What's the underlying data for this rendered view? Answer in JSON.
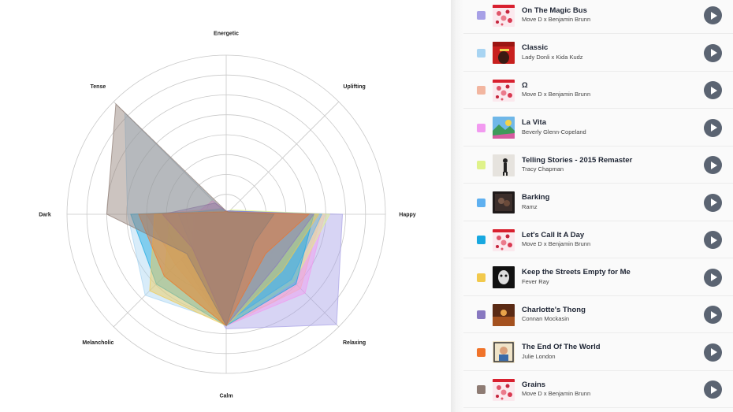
{
  "chart_data": {
    "type": "radar",
    "axes": [
      "Energetic",
      "Uplifting",
      "Happy",
      "Relaxing",
      "Calm",
      "Melancholic",
      "Dark",
      "Tense"
    ],
    "rmax": 1.0,
    "rings": 8,
    "series": [
      {
        "color": "#a7a0e6",
        "values": [
          0.02,
          0.03,
          0.73,
          0.98,
          0.72,
          0.4,
          0.02,
          0.02
        ]
      },
      {
        "color": "#a8d4f2",
        "values": [
          0.01,
          0.02,
          0.6,
          0.62,
          0.68,
          0.72,
          0.62,
          0.9
        ]
      },
      {
        "color": "#f2b6a0",
        "values": [
          0.01,
          0.02,
          0.6,
          0.66,
          0.7,
          0.45,
          0.5,
          0.05
        ]
      },
      {
        "color": "#f29af0",
        "values": [
          0.02,
          0.03,
          0.62,
          0.7,
          0.7,
          0.3,
          0.2,
          0.12
        ]
      },
      {
        "color": "#dff28a",
        "values": [
          0.01,
          0.04,
          0.65,
          0.6,
          0.7,
          0.55,
          0.35,
          0.05
        ]
      },
      {
        "color": "#5fb0f0",
        "values": [
          0.02,
          0.03,
          0.6,
          0.58,
          0.68,
          0.3,
          0.3,
          0.05
        ]
      },
      {
        "color": "#18a8e0",
        "values": [
          0.01,
          0.02,
          0.55,
          0.62,
          0.7,
          0.62,
          0.6,
          0.03
        ]
      },
      {
        "color": "#f2c94c",
        "values": [
          0.01,
          0.02,
          0.58,
          0.5,
          0.7,
          0.68,
          0.45,
          0.03
        ]
      },
      {
        "color": "#8878c0",
        "values": [
          0.02,
          0.03,
          0.55,
          0.45,
          0.7,
          0.3,
          0.4,
          0.1
        ]
      },
      {
        "color": "#f0732a",
        "values": [
          0.02,
          0.02,
          0.52,
          0.35,
          0.7,
          0.55,
          0.55,
          0.02
        ]
      },
      {
        "color": "#8e7c74",
        "values": [
          0.02,
          0.02,
          0.3,
          0.25,
          0.7,
          0.35,
          0.75,
          0.98
        ]
      }
    ]
  },
  "tracks": [
    {
      "title": "On The Magic Bus",
      "artist": "Move D x Benjamin Brunn",
      "color": "#a7a0e6",
      "cover": "cover-red-pattern"
    },
    {
      "title": "Classic",
      "artist": "Lady Donli x Kida Kudz",
      "color": "#a8d4f2",
      "cover": "cover-red-portrait"
    },
    {
      "title": "Ω",
      "artist": "Move D x Benjamin Brunn",
      "color": "#f2b6a0",
      "cover": "cover-red-pattern"
    },
    {
      "title": "La Vita",
      "artist": "Beverly Glenn-Copeland",
      "color": "#f29af0",
      "cover": "cover-landscape"
    },
    {
      "title": "Telling Stories - 2015 Remaster",
      "artist": "Tracy Chapman",
      "color": "#dff28a",
      "cover": "cover-gray-figure"
    },
    {
      "title": "Barking",
      "artist": "Ramz",
      "color": "#5fb0f0",
      "cover": "cover-dark-photo"
    },
    {
      "title": "Let's Call It A Day",
      "artist": "Move D x Benjamin Brunn",
      "color": "#18a8e0",
      "cover": "cover-red-pattern"
    },
    {
      "title": "Keep the Streets Empty for Me",
      "artist": "Fever Ray",
      "color": "#f2c94c",
      "cover": "cover-dark-mask"
    },
    {
      "title": "Charlotte's Thong",
      "artist": "Connan Mockasin",
      "color": "#8878c0",
      "cover": "cover-brown"
    },
    {
      "title": "The End Of The World",
      "artist": "Julie London",
      "color": "#f0732a",
      "cover": "cover-vintage"
    },
    {
      "title": "Grains",
      "artist": "Move D x Benjamin Brunn",
      "color": "#8e7c74",
      "cover": "cover-red-pattern"
    }
  ],
  "play_icon": "play-icon"
}
